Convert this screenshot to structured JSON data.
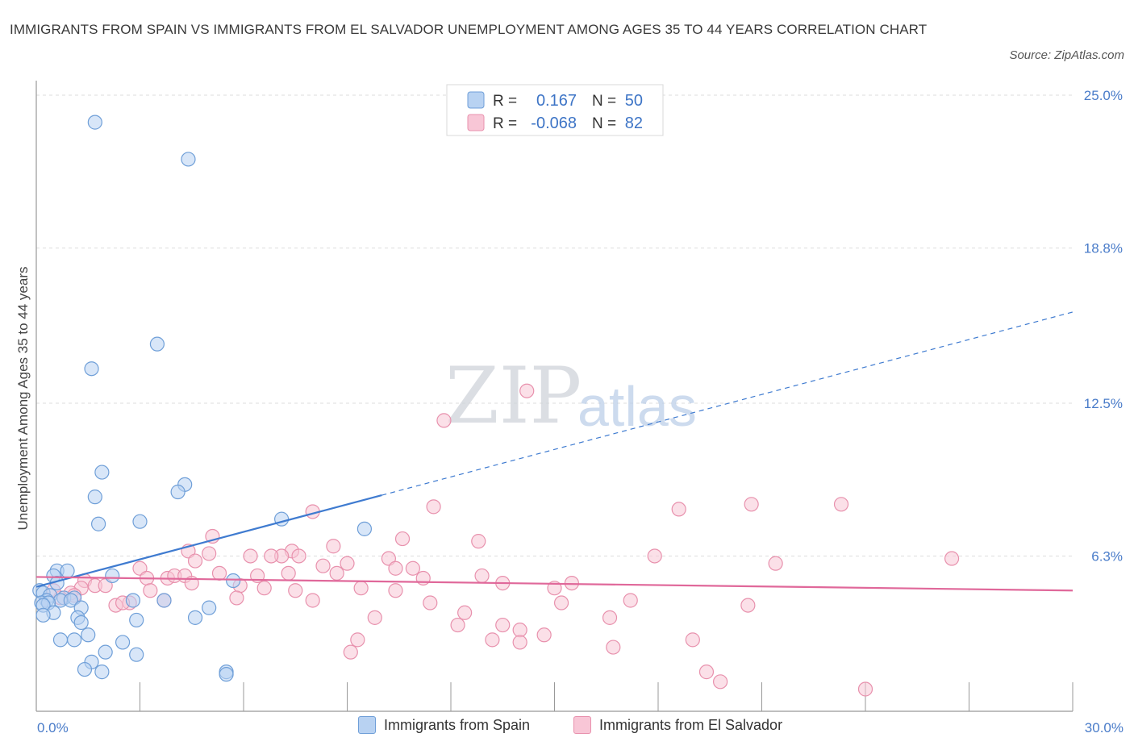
{
  "header": {
    "title": "IMMIGRANTS FROM SPAIN VS IMMIGRANTS FROM EL SALVADOR UNEMPLOYMENT AMONG AGES 35 TO 44 YEARS CORRELATION CHART",
    "source": "Source: ZipAtlas.com"
  },
  "watermark": {
    "zip": "ZIP",
    "atlas": "atlas"
  },
  "legend_top": {
    "r_label": "R =",
    "n_label": "N =",
    "series": [
      {
        "r": "0.167",
        "n": "50"
      },
      {
        "r": "-0.068",
        "n": "82"
      }
    ]
  },
  "legend_bottom": [
    {
      "label": "Immigrants from Spain"
    },
    {
      "label": "Immigrants from El Salvador"
    }
  ],
  "colors": {
    "spain_fill": "#b8d2f2",
    "spain_stroke": "#6f9fd8",
    "spain_line": "#3f7bd0",
    "salvador_fill": "#f8c6d6",
    "salvador_stroke": "#e891ad",
    "salvador_line": "#e0689a",
    "grid": "#dddddd",
    "axis": "#999999"
  },
  "chart_data": {
    "type": "scatter",
    "title": "IMMIGRANTS FROM SPAIN VS IMMIGRANTS FROM EL SALVADOR UNEMPLOYMENT AMONG AGES 35 TO 44 YEARS CORRELATION CHART",
    "xlabel": "",
    "ylabel": "Unemployment Among Ages 35 to 44 years",
    "xlim": [
      0,
      30
    ],
    "ylim": [
      0,
      25
    ],
    "x_ticks": [
      0,
      3,
      6,
      9,
      12,
      15,
      18,
      21,
      24,
      27,
      30
    ],
    "x_tick_labels": [
      {
        "value": 0,
        "label": "0.0%"
      },
      {
        "value": 30,
        "label": "30.0%"
      }
    ],
    "y_ticks": [
      {
        "value": 25.0,
        "label": "25.0%"
      },
      {
        "value": 18.8,
        "label": "18.8%"
      },
      {
        "value": 12.5,
        "label": "12.5%"
      },
      {
        "value": 6.3,
        "label": "6.3%"
      }
    ],
    "grid": true,
    "legend_position": "top-center",
    "series": [
      {
        "name": "Immigrants from Spain",
        "r": 0.167,
        "n": 50,
        "points": [
          [
            1.7,
            23.9
          ],
          [
            4.4,
            22.4
          ],
          [
            3.5,
            14.9
          ],
          [
            1.6,
            13.9
          ],
          [
            1.9,
            9.7
          ],
          [
            1.7,
            8.7
          ],
          [
            4.3,
            9.2
          ],
          [
            4.1,
            8.9
          ],
          [
            1.8,
            7.6
          ],
          [
            3.0,
            7.7
          ],
          [
            7.1,
            7.8
          ],
          [
            9.5,
            7.4
          ],
          [
            0.6,
            5.7
          ],
          [
            0.9,
            5.7
          ],
          [
            0.5,
            5.5
          ],
          [
            2.2,
            5.5
          ],
          [
            5.7,
            5.3
          ],
          [
            0.6,
            5.2
          ],
          [
            0.1,
            4.9
          ],
          [
            0.2,
            4.8
          ],
          [
            0.4,
            4.7
          ],
          [
            0.8,
            4.6
          ],
          [
            0.3,
            4.5
          ],
          [
            1.1,
            4.6
          ],
          [
            0.7,
            4.5
          ],
          [
            3.7,
            4.5
          ],
          [
            1.0,
            4.5
          ],
          [
            0.15,
            4.4
          ],
          [
            0.35,
            4.4
          ],
          [
            2.8,
            4.5
          ],
          [
            0.2,
            4.3
          ],
          [
            1.3,
            4.2
          ],
          [
            5.0,
            4.2
          ],
          [
            0.5,
            4.0
          ],
          [
            0.2,
            3.9
          ],
          [
            1.2,
            3.8
          ],
          [
            4.6,
            3.8
          ],
          [
            2.9,
            3.7
          ],
          [
            1.3,
            3.6
          ],
          [
            1.5,
            3.1
          ],
          [
            0.7,
            2.9
          ],
          [
            1.1,
            2.9
          ],
          [
            2.5,
            2.8
          ],
          [
            2.0,
            2.4
          ],
          [
            2.9,
            2.3
          ],
          [
            1.6,
            2.0
          ],
          [
            1.4,
            1.7
          ],
          [
            1.9,
            1.6
          ],
          [
            5.5,
            1.6
          ],
          [
            5.5,
            1.5
          ]
        ],
        "trend": {
          "x": [
            0,
            30
          ],
          "y": [
            5.05,
            16.2
          ],
          "solid_until_x": 10.0
        }
      },
      {
        "name": "Immigrants from El Salvador",
        "r": -0.068,
        "n": 82,
        "points": [
          [
            14.2,
            13.0
          ],
          [
            11.8,
            11.8
          ],
          [
            8.0,
            8.1
          ],
          [
            11.5,
            8.3
          ],
          [
            18.6,
            8.2
          ],
          [
            20.7,
            8.4
          ],
          [
            23.3,
            8.4
          ],
          [
            5.1,
            7.1
          ],
          [
            10.6,
            7.0
          ],
          [
            12.8,
            6.9
          ],
          [
            8.6,
            6.7
          ],
          [
            4.4,
            6.5
          ],
          [
            5.0,
            6.4
          ],
          [
            7.4,
            6.5
          ],
          [
            6.2,
            6.3
          ],
          [
            7.1,
            6.3
          ],
          [
            6.8,
            6.3
          ],
          [
            7.6,
            6.3
          ],
          [
            17.9,
            6.3
          ],
          [
            10.2,
            6.2
          ],
          [
            26.5,
            6.2
          ],
          [
            21.4,
            6.0
          ],
          [
            9.0,
            6.0
          ],
          [
            8.3,
            5.9
          ],
          [
            3.0,
            5.8
          ],
          [
            10.4,
            5.8
          ],
          [
            10.9,
            5.8
          ],
          [
            7.3,
            5.6
          ],
          [
            5.3,
            5.6
          ],
          [
            8.7,
            5.6
          ],
          [
            3.2,
            5.4
          ],
          [
            3.8,
            5.4
          ],
          [
            4.0,
            5.5
          ],
          [
            4.3,
            5.5
          ],
          [
            6.4,
            5.5
          ],
          [
            11.2,
            5.4
          ],
          [
            4.6,
            6.1
          ],
          [
            13.5,
            5.2
          ],
          [
            15.5,
            5.2
          ],
          [
            1.4,
            5.3
          ],
          [
            4.5,
            5.2
          ],
          [
            5.9,
            5.1
          ],
          [
            1.7,
            5.1
          ],
          [
            2.0,
            5.1
          ],
          [
            1.3,
            5.0
          ],
          [
            9.4,
            5.0
          ],
          [
            15.0,
            5.0
          ],
          [
            3.3,
            4.9
          ],
          [
            10.4,
            4.9
          ],
          [
            7.5,
            4.9
          ],
          [
            1.0,
            4.8
          ],
          [
            1.1,
            4.7
          ],
          [
            0.7,
            4.6
          ],
          [
            5.8,
            4.6
          ],
          [
            8.0,
            4.5
          ],
          [
            3.7,
            4.5
          ],
          [
            17.2,
            4.5
          ],
          [
            2.7,
            4.4
          ],
          [
            11.4,
            4.4
          ],
          [
            15.2,
            4.4
          ],
          [
            20.6,
            4.3
          ],
          [
            2.3,
            4.3
          ],
          [
            12.4,
            4.0
          ],
          [
            9.8,
            3.8
          ],
          [
            16.6,
            3.8
          ],
          [
            12.2,
            3.5
          ],
          [
            13.5,
            3.5
          ],
          [
            14.0,
            3.3
          ],
          [
            14.7,
            3.1
          ],
          [
            9.3,
            2.9
          ],
          [
            13.2,
            2.9
          ],
          [
            14.0,
            2.8
          ],
          [
            19.0,
            2.9
          ],
          [
            16.7,
            2.6
          ],
          [
            9.1,
            2.4
          ],
          [
            19.4,
            1.6
          ],
          [
            19.8,
            1.2
          ],
          [
            24.0,
            0.9
          ],
          [
            0.5,
            4.9
          ],
          [
            2.5,
            4.4
          ],
          [
            6.6,
            5.0
          ],
          [
            12.9,
            5.5
          ]
        ],
        "trend": {
          "x": [
            0,
            30
          ],
          "y": [
            5.45,
            4.9
          ]
        }
      }
    ]
  }
}
